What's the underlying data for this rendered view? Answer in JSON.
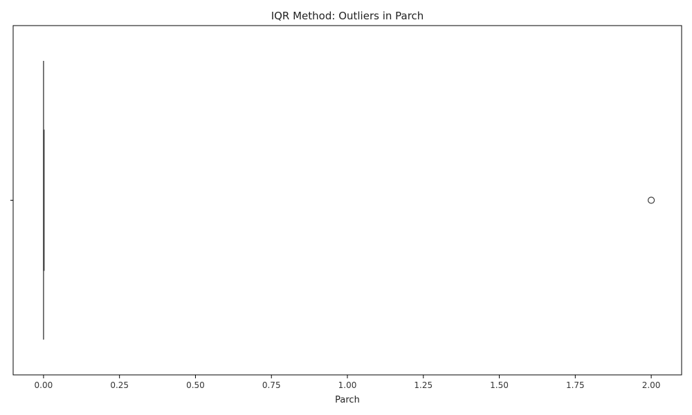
{
  "chart_data": {
    "type": "boxplot",
    "orientation": "horizontal",
    "title": "IQR Method: Outliers in Parch",
    "xlabel": "Parch",
    "ylabel": "",
    "xlim": [
      -0.1,
      2.1
    ],
    "xticks": [
      0.0,
      0.25,
      0.5,
      0.75,
      1.0,
      1.25,
      1.5,
      1.75,
      2.0
    ],
    "xtick_labels": [
      "0.00",
      "0.25",
      "0.50",
      "0.75",
      "1.00",
      "1.25",
      "1.50",
      "1.75",
      "2.00"
    ],
    "box": {
      "whisker_low": 0,
      "q1": 0,
      "median": 0,
      "q3": 0,
      "whisker_high": 0
    },
    "outliers": [
      2
    ],
    "grid": false,
    "colors": {
      "box_line": "#4d4d4d",
      "outlier_edge": "#3a3a3a",
      "axis": "#000000"
    }
  }
}
